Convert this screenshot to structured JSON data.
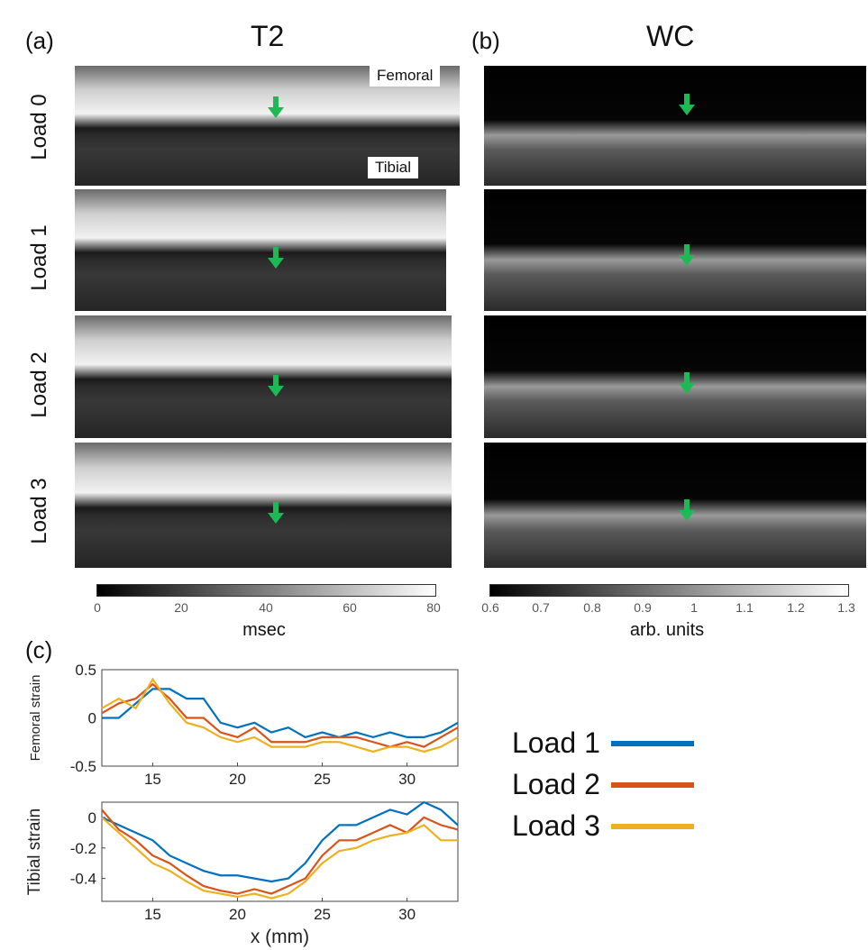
{
  "panels": {
    "a": {
      "letter": "(a)",
      "title": "T2"
    },
    "b": {
      "letter": "(b)",
      "title": "WC"
    },
    "c": {
      "letter": "(c)"
    }
  },
  "row_labels": [
    "Load 0",
    "Load 1",
    "Load 2",
    "Load 3"
  ],
  "image_tags": {
    "femoral": "Femoral",
    "tibial": "Tibial"
  },
  "colorbars": {
    "t2": {
      "ticks": [
        "0",
        "20",
        "40",
        "60",
        "80"
      ],
      "title": "msec"
    },
    "wc": {
      "ticks": [
        "0.6",
        "0.7",
        "0.8",
        "0.9",
        "1",
        "1.1",
        "1.2",
        "1.3"
      ],
      "title": "arb. units"
    }
  },
  "colors": {
    "arrow": "#1db954",
    "load1": "#0072bd",
    "load2": "#d95319",
    "load3": "#edb120"
  },
  "legend": [
    "Load 1",
    "Load 2",
    "Load 3"
  ],
  "chart_data": [
    {
      "type": "line",
      "ylabel": "Femoral strain",
      "xlabel": "",
      "xlim": [
        12,
        33
      ],
      "ylim": [
        -0.5,
        0.5
      ],
      "xticks": [
        "15",
        "20",
        "25",
        "30"
      ],
      "yticks": [
        "0.5",
        "0",
        "-0.5"
      ],
      "x": [
        12,
        13,
        14,
        15,
        16,
        17,
        18,
        19,
        20,
        21,
        22,
        23,
        24,
        25,
        26,
        27,
        28,
        29,
        30,
        31,
        32,
        33
      ],
      "series": [
        {
          "name": "Load 1",
          "values": [
            0.0,
            0.0,
            0.15,
            0.3,
            0.3,
            0.2,
            0.2,
            -0.05,
            -0.1,
            -0.05,
            -0.15,
            -0.1,
            -0.2,
            -0.15,
            -0.2,
            -0.15,
            -0.2,
            -0.15,
            -0.2,
            -0.2,
            -0.15,
            -0.05
          ]
        },
        {
          "name": "Load 2",
          "values": [
            0.05,
            0.15,
            0.2,
            0.35,
            0.2,
            0.0,
            0.0,
            -0.15,
            -0.2,
            -0.1,
            -0.25,
            -0.25,
            -0.25,
            -0.2,
            -0.2,
            -0.2,
            -0.25,
            -0.3,
            -0.25,
            -0.3,
            -0.2,
            -0.1
          ]
        },
        {
          "name": "Load 3",
          "values": [
            0.1,
            0.2,
            0.1,
            0.4,
            0.15,
            -0.05,
            -0.1,
            -0.2,
            -0.25,
            -0.2,
            -0.3,
            -0.3,
            -0.3,
            -0.25,
            -0.25,
            -0.3,
            -0.35,
            -0.3,
            -0.3,
            -0.35,
            -0.3,
            -0.2
          ]
        }
      ]
    },
    {
      "type": "line",
      "ylabel": "Tibial strain",
      "xlabel": "x (mm)",
      "xlim": [
        12,
        33
      ],
      "ylim": [
        -0.55,
        0.1
      ],
      "xticks": [
        "15",
        "20",
        "25",
        "30"
      ],
      "yticks": [
        "0",
        "-0.2",
        "-0.4"
      ],
      "x": [
        12,
        13,
        14,
        15,
        16,
        17,
        18,
        19,
        20,
        21,
        22,
        23,
        24,
        25,
        26,
        27,
        28,
        29,
        30,
        31,
        32,
        33
      ],
      "series": [
        {
          "name": "Load 1",
          "values": [
            0.0,
            -0.05,
            -0.1,
            -0.15,
            -0.25,
            -0.3,
            -0.35,
            -0.38,
            -0.38,
            -0.4,
            -0.42,
            -0.4,
            -0.3,
            -0.15,
            -0.05,
            -0.05,
            0.0,
            0.05,
            0.02,
            0.1,
            0.05,
            -0.05
          ]
        },
        {
          "name": "Load 2",
          "values": [
            0.05,
            -0.08,
            -0.15,
            -0.25,
            -0.3,
            -0.38,
            -0.45,
            -0.48,
            -0.5,
            -0.47,
            -0.5,
            -0.45,
            -0.4,
            -0.25,
            -0.15,
            -0.15,
            -0.1,
            -0.05,
            -0.1,
            0.0,
            -0.05,
            -0.08
          ]
        },
        {
          "name": "Load 3",
          "values": [
            0.0,
            -0.1,
            -0.2,
            -0.3,
            -0.35,
            -0.42,
            -0.48,
            -0.5,
            -0.52,
            -0.5,
            -0.53,
            -0.5,
            -0.42,
            -0.3,
            -0.22,
            -0.2,
            -0.15,
            -0.12,
            -0.1,
            -0.05,
            -0.15,
            -0.15
          ]
        }
      ]
    }
  ]
}
